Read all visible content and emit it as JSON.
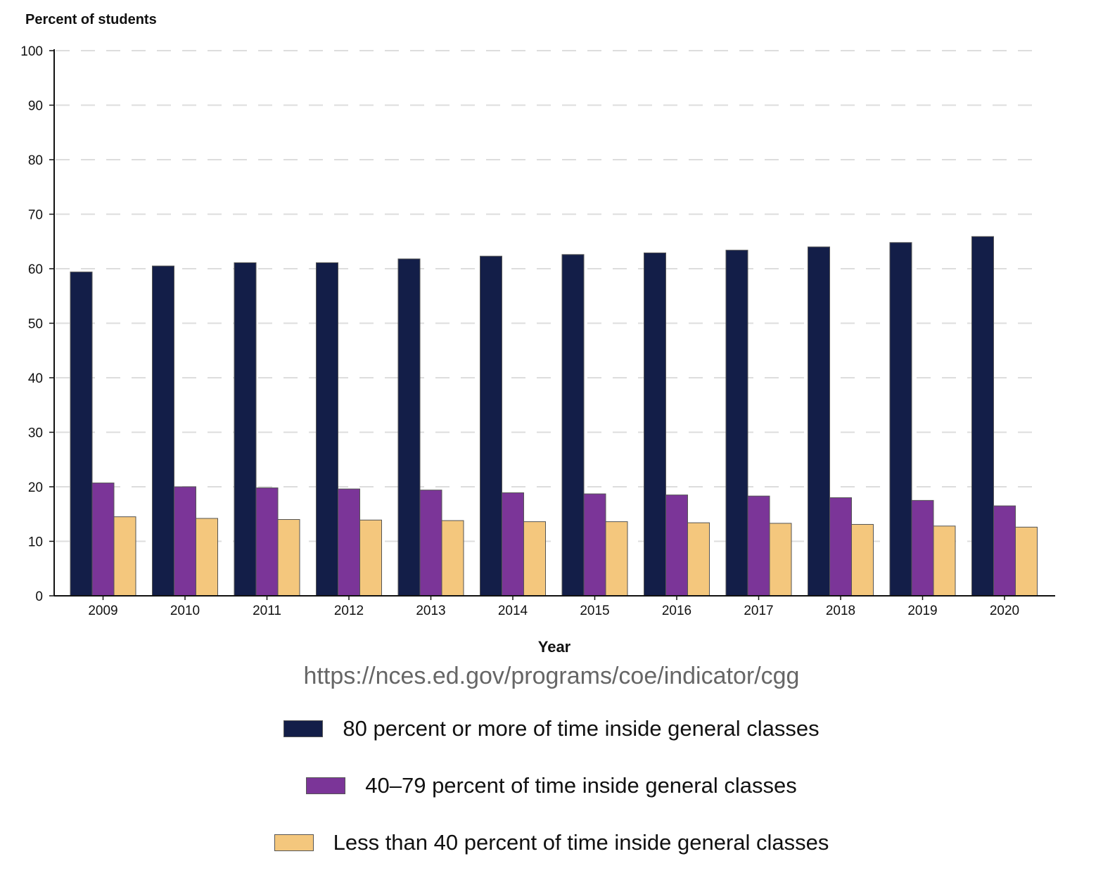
{
  "chart_data": {
    "type": "bar",
    "ylabel": "Percent of students",
    "xlabel": "Year",
    "ylim": [
      0,
      100
    ],
    "yticks": [
      0,
      10,
      20,
      30,
      40,
      50,
      60,
      70,
      80,
      90,
      100
    ],
    "grid": "horizontal dashed",
    "legend_position": "bottom",
    "categories": [
      "2009",
      "2010",
      "2011",
      "2012",
      "2013",
      "2014",
      "2015",
      "2016",
      "2017",
      "2018",
      "2019",
      "2020"
    ],
    "series": [
      {
        "name": "80 percent or more of time inside general classes",
        "color": "#131e48",
        "values": [
          59.4,
          60.5,
          61.1,
          61.1,
          61.8,
          62.3,
          62.6,
          62.9,
          63.4,
          64.0,
          64.8,
          65.9
        ]
      },
      {
        "name": "40–79 percent of time inside general classes",
        "color": "#7b3598",
        "values": [
          20.7,
          20.0,
          19.8,
          19.6,
          19.4,
          18.9,
          18.7,
          18.5,
          18.3,
          18.0,
          17.5,
          16.5
        ]
      },
      {
        "name": "Less than 40 percent of time inside general classes",
        "color": "#f4c77d",
        "values": [
          14.5,
          14.2,
          14.0,
          13.9,
          13.8,
          13.6,
          13.6,
          13.4,
          13.3,
          13.1,
          12.8,
          12.6
        ]
      }
    ]
  },
  "source_url": "https://nces.ed.gov/programs/coe/indicator/cgg"
}
